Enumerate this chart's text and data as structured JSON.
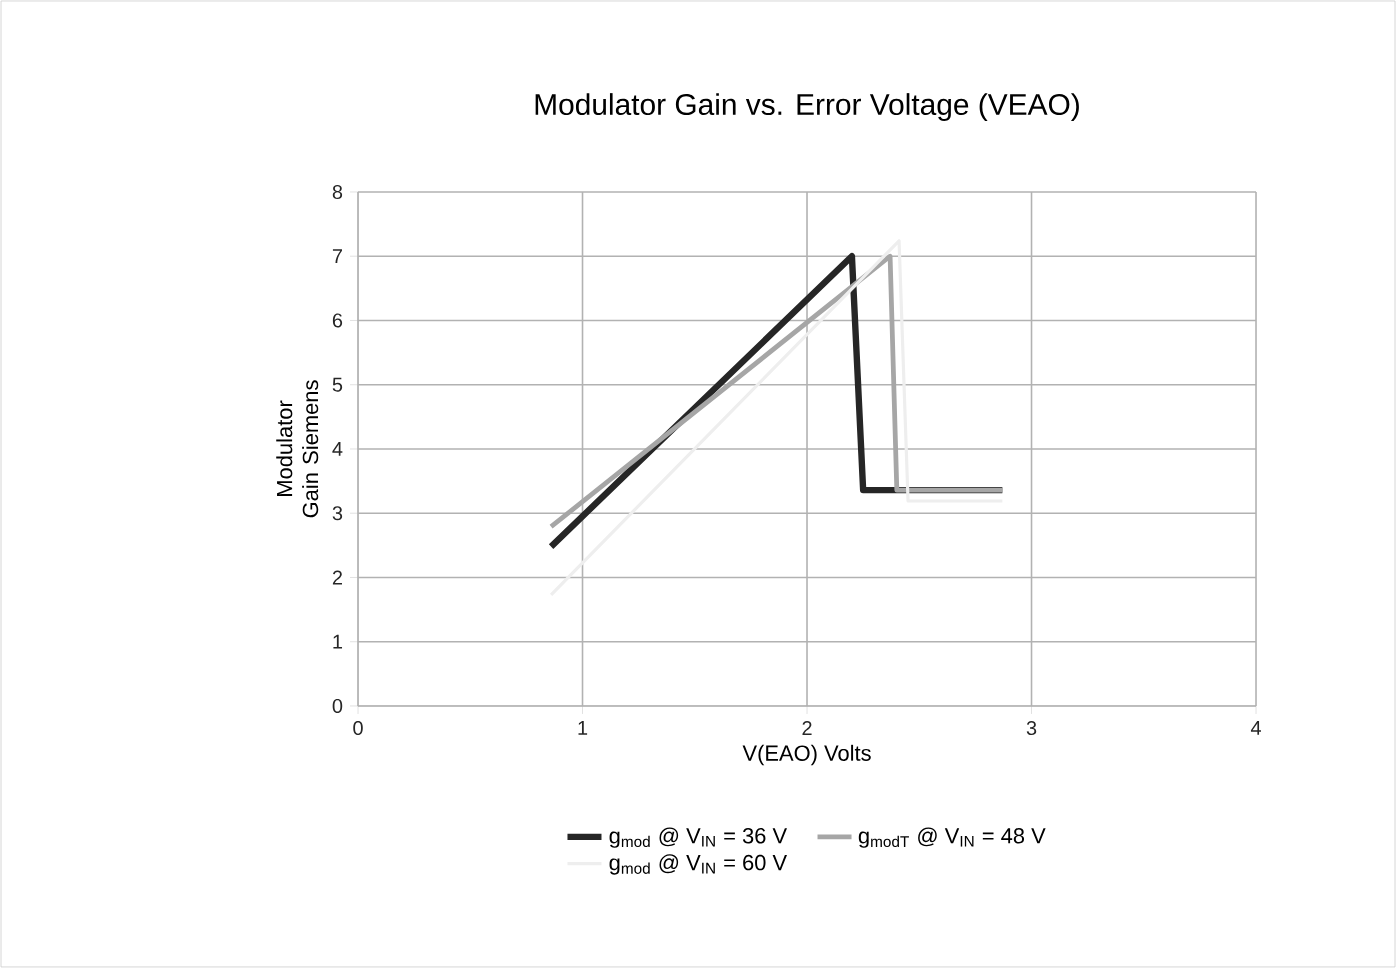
{
  "chart_data": {
    "type": "line",
    "title": "Modulator Gain vs. Error Voltage (VEAO)",
    "xlabel": "V(EAO) Volts",
    "ylabel": "Modulator Gain Siemens",
    "xlim": [
      0,
      4
    ],
    "xticks": [
      0,
      1,
      2,
      3,
      4
    ],
    "ylim": [
      0,
      8
    ],
    "yticks": [
      0,
      1,
      2,
      3,
      4,
      5,
      6,
      7,
      8
    ],
    "grid": true,
    "legend": "bottom",
    "marker": "none",
    "line_style": "solid",
    "series": [
      {
        "name": "g$_{mod}$ @ V$_{IN}$ = 36 V",
        "color": "#262626",
        "x": [
          0.86,
          2.2,
          2.25,
          2.87
        ],
        "values": [
          2.48,
          7.0,
          3.36,
          3.36
        ]
      },
      {
        "name": "g$_{modT}$ @ V$_{IN}$ = 48 V",
        "color": "#a6a6a6",
        "x": [
          0.86,
          2.37,
          2.4,
          2.87
        ],
        "values": [
          2.79,
          7.0,
          3.36,
          3.36
        ]
      },
      {
        "name": "g$_{mod}$ @ V$_{IN}$ = 60 V",
        "color": "#eeeeee",
        "x": [
          0.86,
          2.41,
          2.45,
          2.87
        ],
        "values": [
          1.73,
          7.24,
          3.19,
          3.19
        ]
      }
    ]
  }
}
